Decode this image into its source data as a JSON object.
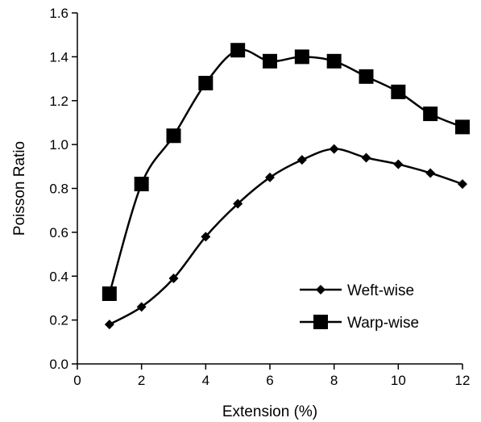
{
  "chart_data": {
    "type": "line",
    "title": "",
    "xlabel": "Extension (%)",
    "ylabel": "Poisson Ratio",
    "xlim": [
      0,
      12
    ],
    "ylim": [
      0.0,
      1.6
    ],
    "xticks": [
      0,
      2,
      4,
      6,
      8,
      10,
      12
    ],
    "xtick_labels": [
      "0",
      "2",
      "4",
      "6",
      "8",
      "10",
      "12"
    ],
    "yticks": [
      0.0,
      0.2,
      0.4,
      0.6,
      0.8,
      1.0,
      1.2,
      1.4,
      1.6
    ],
    "ytick_labels": [
      "0.0",
      "0.2",
      "0.4",
      "0.6",
      "0.8",
      "1.0",
      "1.2",
      "1.4",
      "1.6"
    ],
    "grid": false,
    "legend_position": "bottom-right",
    "series": [
      {
        "name": "Weft-wise",
        "marker": "diamond",
        "color": "#000000",
        "x": [
          1,
          2,
          3,
          4,
          5,
          6,
          7,
          8,
          9,
          10,
          11,
          12
        ],
        "values": [
          0.18,
          0.26,
          0.39,
          0.58,
          0.73,
          0.85,
          0.93,
          0.98,
          0.94,
          0.91,
          0.87,
          0.82
        ]
      },
      {
        "name": "Warp-wise",
        "marker": "square",
        "color": "#000000",
        "x": [
          1,
          2,
          3,
          4,
          5,
          6,
          7,
          8,
          9,
          10,
          11,
          12
        ],
        "values": [
          0.32,
          0.82,
          1.04,
          1.28,
          1.43,
          1.38,
          1.4,
          1.38,
          1.31,
          1.24,
          1.14,
          1.08
        ]
      }
    ]
  }
}
